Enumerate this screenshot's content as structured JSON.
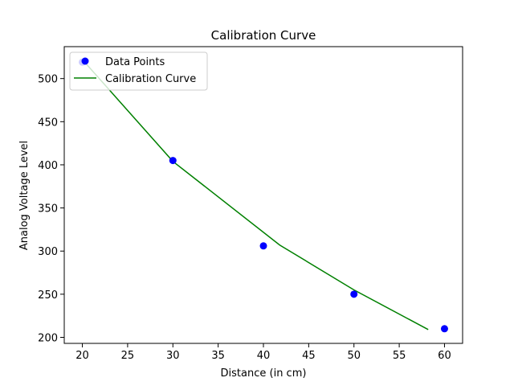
{
  "chart_data": {
    "type": "scatter",
    "title": "Calibration Curve",
    "xlabel": "Distance (in cm)",
    "ylabel": "Analog Voltage Level",
    "xlim": [
      18,
      62
    ],
    "ylim": [
      193,
      537
    ],
    "xticks": [
      20,
      25,
      30,
      35,
      40,
      45,
      50,
      55,
      60
    ],
    "yticks": [
      200,
      250,
      300,
      350,
      400,
      450,
      500
    ],
    "grid": false,
    "legend_position": "top-left",
    "series": [
      {
        "name": "Data Points",
        "kind": "scatter",
        "color": "#0000ff",
        "x": [
          20,
          30,
          40,
          50,
          60
        ],
        "y": [
          519,
          405,
          306,
          250,
          210
        ]
      },
      {
        "name": "Calibration Curve",
        "kind": "line",
        "color": "#008000",
        "x": [
          20,
          30,
          41.8,
          50,
          58.2
        ],
        "y": [
          522,
          404,
          307,
          255,
          209
        ]
      }
    ]
  }
}
